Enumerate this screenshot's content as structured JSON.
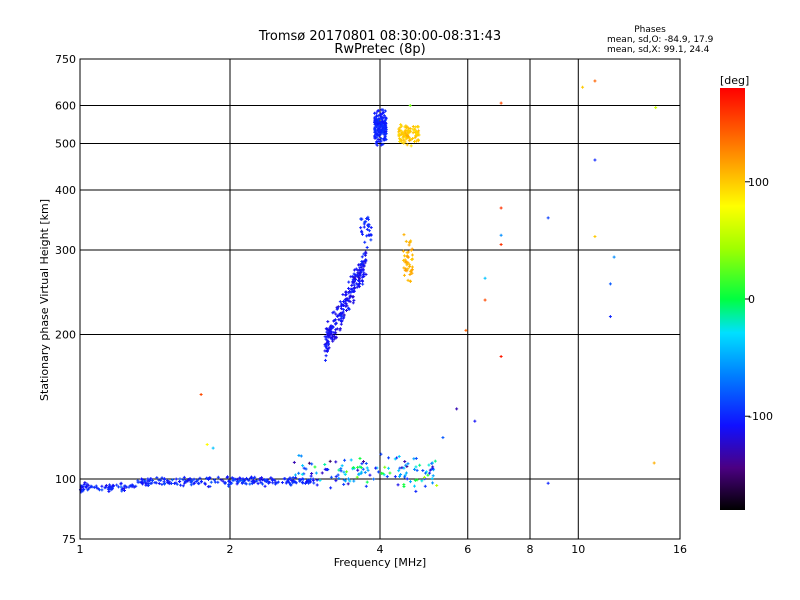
{
  "chart_data": {
    "type": "scatter",
    "title": "Tromsø 20170801 08:30:00-08:31:43",
    "subtitle": "RwPretec (8p)",
    "xlabel": "Frequency [MHz]",
    "ylabel": "Stationary phase Virtual Height [km]",
    "x_scale": "log",
    "y_scale": "log",
    "xlim": [
      1,
      16
    ],
    "ylim": [
      75,
      750
    ],
    "x_ticks": [
      1,
      2,
      4,
      6,
      8,
      10,
      16
    ],
    "x_tick_labels": [
      "1",
      "2",
      "4",
      "6",
      "8",
      "10",
      "16"
    ],
    "y_ticks": [
      75,
      100,
      200,
      300,
      400,
      500,
      600,
      750
    ],
    "y_tick_labels": [
      "75",
      "100",
      "200",
      "300",
      "400",
      "500",
      "600",
      "750"
    ],
    "grid": true,
    "phase_info": {
      "title": "Phases",
      "line_o": "mean, sd,O: -84.9, 17.9",
      "line_x": "mean, sd,X:  99.1, 24.4"
    },
    "colorbar": {
      "label": "[deg]",
      "range": [
        -180,
        180
      ],
      "ticks": [
        100,
        0,
        -100
      ],
      "tick_labels": [
        "100",
        "0",
        "-100"
      ]
    },
    "clusters": [
      {
        "name": "e_layer",
        "count": 300,
        "x_range": [
          1.0,
          3.0
        ],
        "y_center": 99,
        "y_spread": 3,
        "phase": -100,
        "phase_spread": 25
      },
      {
        "name": "lower_scatter",
        "count": 140,
        "x_range": [
          2.6,
          5.2
        ],
        "y_center": 103,
        "y_spread": 12,
        "phase": -60,
        "phase_spread": 130
      },
      {
        "name": "o_trace_low",
        "count": 230,
        "x_range": [
          3.1,
          3.75
        ],
        "y_center": 218,
        "y_spread": 25,
        "phase": -110,
        "phase_spread": 20
      },
      {
        "name": "o_trace_mid",
        "count": 30,
        "x_range": [
          3.65,
          3.85
        ],
        "y_center": 330,
        "y_spread": 55,
        "phase": -100,
        "phase_spread": 15
      },
      {
        "name": "o_trace_high",
        "count": 170,
        "x_range": [
          3.9,
          4.12
        ],
        "y_center": 540,
        "y_spread": 60,
        "phase": -100,
        "phase_spread": 12
      },
      {
        "name": "x_trace_high",
        "count": 95,
        "x_range": [
          4.35,
          4.8
        ],
        "y_center": 525,
        "y_spread": 35,
        "phase": 100,
        "phase_spread": 15
      },
      {
        "name": "x_trace_mid",
        "count": 45,
        "x_range": [
          4.45,
          4.65
        ],
        "y_center": 290,
        "y_spread": 45,
        "phase": 110,
        "phase_spread": 15
      }
    ],
    "points": [
      {
        "x": 1.75,
        "y": 150,
        "phase": 150
      },
      {
        "x": 1.8,
        "y": 118,
        "phase": 80
      },
      {
        "x": 1.85,
        "y": 116,
        "phase": -40
      },
      {
        "x": 4.6,
        "y": 600,
        "phase": 30
      },
      {
        "x": 7.0,
        "y": 607,
        "phase": 150
      },
      {
        "x": 7.0,
        "y": 367,
        "phase": 160
      },
      {
        "x": 7.0,
        "y": 322,
        "phase": -60
      },
      {
        "x": 7.0,
        "y": 308,
        "phase": 160
      },
      {
        "x": 7.0,
        "y": 180,
        "phase": 170
      },
      {
        "x": 6.5,
        "y": 262,
        "phase": -40
      },
      {
        "x": 6.5,
        "y": 236,
        "phase": 150
      },
      {
        "x": 5.95,
        "y": 204,
        "phase": 140
      },
      {
        "x": 8.7,
        "y": 350,
        "phase": -90
      },
      {
        "x": 8.7,
        "y": 98,
        "phase": -100
      },
      {
        "x": 10.2,
        "y": 655,
        "phase": 100
      },
      {
        "x": 10.8,
        "y": 675,
        "phase": 140
      },
      {
        "x": 10.8,
        "y": 462,
        "phase": -100
      },
      {
        "x": 10.8,
        "y": 320,
        "phase": 100
      },
      {
        "x": 11.8,
        "y": 290,
        "phase": -60
      },
      {
        "x": 11.6,
        "y": 255,
        "phase": -80
      },
      {
        "x": 11.6,
        "y": 218,
        "phase": -100
      },
      {
        "x": 14.2,
        "y": 108,
        "phase": 110
      },
      {
        "x": 14.3,
        "y": 594,
        "phase": 60
      },
      {
        "x": 5.7,
        "y": 140,
        "phase": -130
      },
      {
        "x": 5.35,
        "y": 122,
        "phase": -80
      },
      {
        "x": 6.2,
        "y": 132,
        "phase": -110
      }
    ]
  }
}
